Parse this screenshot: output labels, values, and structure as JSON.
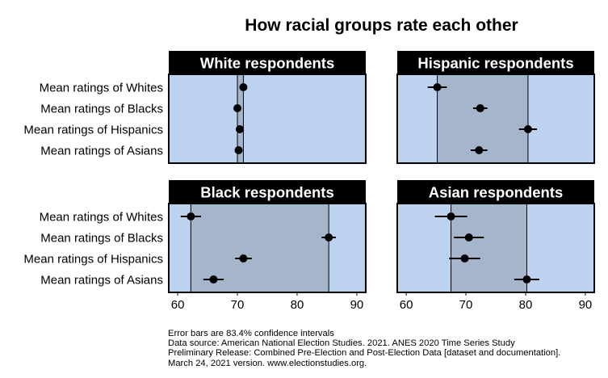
{
  "chart_data": {
    "type": "scatter",
    "title": "How racial groups rate each other",
    "xlim": [
      58.5,
      91.5
    ],
    "x_ticks": [
      60,
      70,
      80,
      90
    ],
    "categories": [
      "Mean ratings of Whites",
      "Mean ratings of Blacks",
      "Mean ratings of Hispanics",
      "Mean ratings of Asians"
    ],
    "panels": [
      {
        "title": "White respondents",
        "values": [
          71.0,
          70.0,
          70.4,
          70.2
        ],
        "ci_low": [
          70.5,
          69.6,
          69.9,
          69.7
        ],
        "ci_high": [
          71.5,
          70.4,
          70.9,
          70.7
        ]
      },
      {
        "title": "Hispanic respondents",
        "values": [
          65.2,
          72.4,
          80.4,
          72.2
        ],
        "ci_low": [
          63.6,
          71.2,
          78.9,
          70.8
        ],
        "ci_high": [
          66.8,
          73.6,
          81.9,
          73.6
        ]
      },
      {
        "title": "Black respondents",
        "values": [
          62.2,
          85.3,
          71.0,
          66.0
        ],
        "ci_low": [
          60.5,
          84.1,
          69.6,
          64.3
        ],
        "ci_high": [
          63.9,
          86.5,
          72.4,
          67.7
        ]
      },
      {
        "title": "Asian respondents",
        "values": [
          67.5,
          70.5,
          69.8,
          80.2
        ],
        "ci_low": [
          64.8,
          68.0,
          67.2,
          78.1
        ],
        "ci_high": [
          70.2,
          73.0,
          72.4,
          82.3
        ]
      }
    ],
    "colors": {
      "panel_fill": "#bcd2ef",
      "range_fill": "#a5b5cc",
      "strip_fill": "#000000",
      "strip_text": "#ffffff",
      "point": "#000000"
    }
  },
  "caption_lines": [
    "Error bars are 83.4% confidence intervals",
    "Data source: American National Election Studies. 2021. ANES 2020 Time Series Study",
    "Preliminary Release: Combined Pre-Election and Post-Election Data [dataset and documentation].",
    "March 24, 2021 version. www.electionstudies.org."
  ]
}
